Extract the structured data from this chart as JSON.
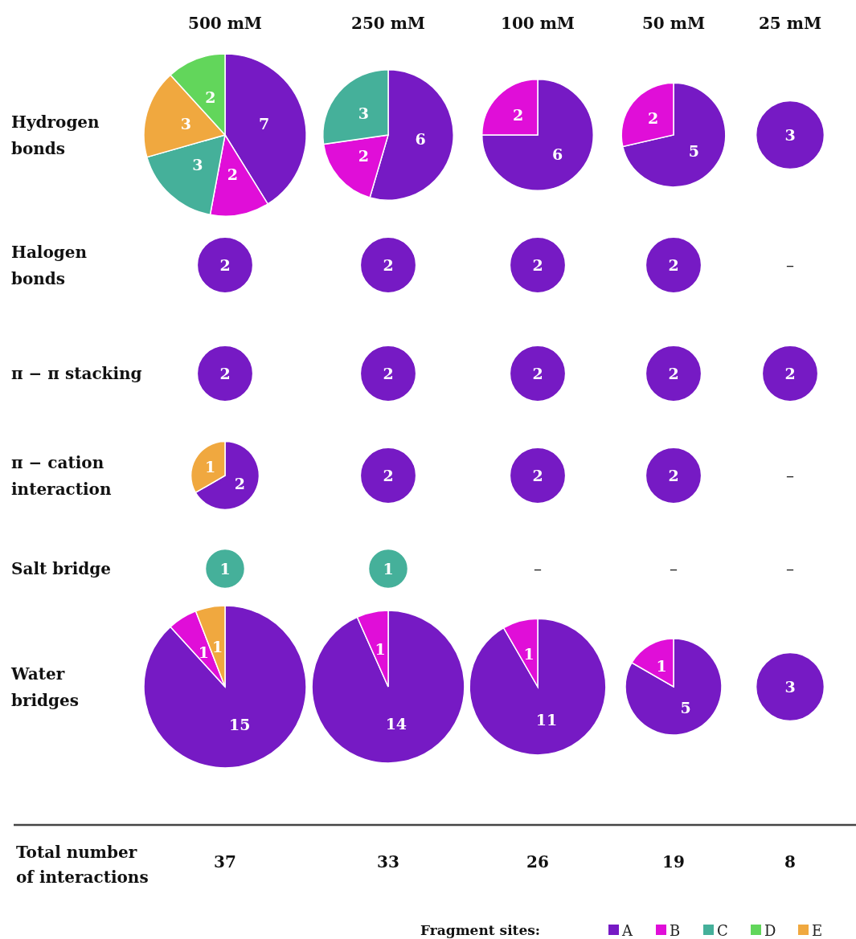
{
  "chart_data": [
    {
      "type": "other",
      "categories": [
        "A",
        "B",
        "C",
        "D",
        "E"
      ],
      "colors": [
        "#761ac4",
        "#e00ed8",
        "#45b09a",
        "#62d65b",
        "#f0a83f"
      ],
      "y_categories": [
        "Hydrogen\nbonds",
        "Halogen\nbonds",
        "π − π stacking",
        "π − cation\ninteraction",
        "Salt bridge",
        "Water\nbridges"
      ],
      "cell_labels": [
        [
          null,
          null,
          null,
          null,
          null
        ],
        [
          null,
          null,
          null,
          null,
          "–"
        ],
        [
          null,
          null,
          null,
          null,
          null
        ],
        [
          null,
          null,
          null,
          null,
          "–"
        ],
        [
          null,
          null,
          "–",
          "–",
          "–"
        ],
        [
          null,
          null,
          null,
          null,
          null
        ]
      ],
      "annotations": [
        "500 mM",
        "250 mM",
        "100 mM",
        "50 mM",
        "25 mM",
        "Total number\nof interactions"
      ],
      "totals": [
        "37",
        "33",
        "26",
        "19",
        "8"
      ],
      "legend_title": "Fragment sites:"
    },
    {
      "type": "pie",
      "categories": [
        null,
        null,
        null,
        null,
        null
      ],
      "values": [
        7,
        2,
        3,
        3,
        2
      ],
      "colors": [
        "#761ac4",
        "#e00ed8",
        "#45b09a",
        "#f0a83f",
        "#62d65b"
      ],
      "data_labels": true
    },
    {
      "type": "pie",
      "categories": [
        null,
        null,
        null
      ],
      "values": [
        6,
        2,
        3
      ],
      "colors": [
        "#761ac4",
        "#e00ed8",
        "#45b09a"
      ],
      "data_labels": true
    },
    {
      "type": "pie",
      "categories": [
        null,
        null
      ],
      "values": [
        6,
        2
      ],
      "colors": [
        "#761ac4",
        "#e00ed8"
      ],
      "data_labels": true
    },
    {
      "type": "pie",
      "categories": [
        null,
        null
      ],
      "values": [
        5,
        2
      ],
      "colors": [
        "#761ac4",
        "#e00ed8"
      ],
      "data_labels": true
    },
    {
      "type": "pie",
      "categories": [
        null
      ],
      "values": [
        3
      ],
      "colors": [
        "#761ac4"
      ],
      "data_labels": true
    },
    {
      "type": "pie",
      "categories": [
        null
      ],
      "values": [
        2
      ],
      "colors": [
        "#761ac4"
      ],
      "data_labels": true
    },
    {
      "type": "pie",
      "categories": [
        null
      ],
      "values": [
        2
      ],
      "colors": [
        "#761ac4"
      ],
      "data_labels": true
    },
    {
      "type": "pie",
      "categories": [
        null
      ],
      "values": [
        2
      ],
      "colors": [
        "#761ac4"
      ],
      "data_labels": true
    },
    {
      "type": "pie",
      "categories": [
        null
      ],
      "values": [
        2
      ],
      "colors": [
        "#761ac4"
      ],
      "data_labels": true
    },
    {
      "type": "pie",
      "categories": [
        null
      ],
      "values": [
        2
      ],
      "colors": [
        "#761ac4"
      ],
      "data_labels": true
    },
    {
      "type": "pie",
      "categories": [
        null
      ],
      "values": [
        2
      ],
      "colors": [
        "#761ac4"
      ],
      "data_labels": true
    },
    {
      "type": "pie",
      "categories": [
        null
      ],
      "values": [
        2
      ],
      "colors": [
        "#761ac4"
      ],
      "data_labels": true
    },
    {
      "type": "pie",
      "categories": [
        null
      ],
      "values": [
        2
      ],
      "colors": [
        "#761ac4"
      ],
      "data_labels": true
    },
    {
      "type": "pie",
      "categories": [
        null
      ],
      "values": [
        2
      ],
      "colors": [
        "#761ac4"
      ],
      "data_labels": true
    },
    {
      "type": "pie",
      "categories": [
        null,
        null
      ],
      "values": [
        2,
        1
      ],
      "colors": [
        "#761ac4",
        "#f0a83f"
      ],
      "data_labels": true
    },
    {
      "type": "pie",
      "categories": [
        null
      ],
      "values": [
        2
      ],
      "colors": [
        "#761ac4"
      ],
      "data_labels": true
    },
    {
      "type": "pie",
      "categories": [
        null
      ],
      "values": [
        2
      ],
      "colors": [
        "#761ac4"
      ],
      "data_labels": true
    },
    {
      "type": "pie",
      "categories": [
        null
      ],
      "values": [
        2
      ],
      "colors": [
        "#761ac4"
      ],
      "data_labels": true
    },
    {
      "type": "pie",
      "categories": [
        null
      ],
      "values": [
        1
      ],
      "colors": [
        "#45b09a"
      ],
      "data_labels": true
    },
    {
      "type": "pie",
      "categories": [
        null
      ],
      "values": [
        1
      ],
      "colors": [
        "#45b09a"
      ],
      "data_labels": true
    },
    {
      "type": "pie",
      "categories": [
        null,
        null,
        null
      ],
      "values": [
        15,
        1,
        1
      ],
      "colors": [
        "#761ac4",
        "#e00ed8",
        "#f0a83f"
      ],
      "data_labels": true
    },
    {
      "type": "pie",
      "categories": [
        null,
        null
      ],
      "values": [
        14,
        1
      ],
      "colors": [
        "#761ac4",
        "#e00ed8"
      ],
      "data_labels": true
    },
    {
      "type": "pie",
      "categories": [
        null,
        null
      ],
      "values": [
        11,
        1
      ],
      "colors": [
        "#761ac4",
        "#e00ed8"
      ],
      "data_labels": true
    },
    {
      "type": "pie",
      "categories": [
        null,
        null
      ],
      "values": [
        5,
        1
      ],
      "colors": [
        "#761ac4",
        "#e00ed8"
      ],
      "data_labels": true
    },
    {
      "type": "pie",
      "categories": [
        null
      ],
      "values": [
        3
      ],
      "colors": [
        "#761ac4"
      ],
      "data_labels": true
    }
  ]
}
